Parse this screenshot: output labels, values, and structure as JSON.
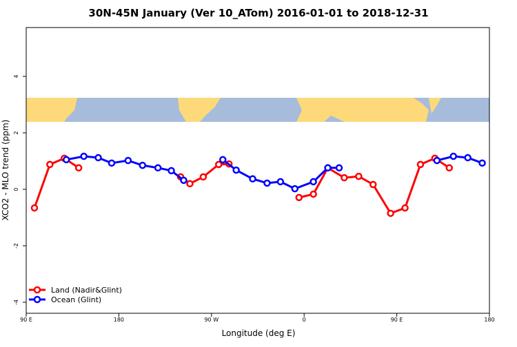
{
  "chart_data": {
    "type": "line",
    "title": "30N-45N January (Ver 10_ATom)   2016-01-01 to 2018-12-31",
    "x_label": "Longitude (deg E)",
    "y_label": "XCO2 - MLO trend (ppm)",
    "xlim": [
      90,
      540
    ],
    "xticks": [
      {
        "value": 90,
        "label": "90 E"
      },
      {
        "value": 180,
        "label": "180"
      },
      {
        "value": 270,
        "label": "90 W"
      },
      {
        "value": 360,
        "label": "0"
      },
      {
        "value": 450,
        "label": "90 E"
      },
      {
        "value": 540,
        "label": "180"
      }
    ],
    "ylim": [
      -4.39,
      5.73
    ],
    "yticks": [
      -4,
      -2,
      0,
      2,
      4
    ],
    "legend": "bottom-left",
    "series": [
      {
        "name": "Land (Nadir&Glint)",
        "color": "#ff0000",
        "x": [
          98,
          113,
          127,
          141,
          null,
          240,
          249,
          262,
          277,
          287,
          null,
          355,
          369,
          383,
          399,
          413,
          427,
          444,
          458,
          473,
          487,
          501
        ],
        "values": [
          -0.66,
          0.88,
          1.1,
          0.76,
          null,
          0.44,
          0.2,
          0.44,
          0.88,
          0.9,
          null,
          -0.29,
          -0.17,
          0.76,
          0.41,
          0.46,
          0.17,
          -0.85,
          -0.66,
          0.88,
          1.1,
          0.76
        ]
      },
      {
        "name": "Ocean (Glint)",
        "color": "#0000ff",
        "x": [
          129,
          146,
          160,
          173,
          189,
          203,
          218,
          231,
          243,
          null,
          281,
          294,
          310,
          324,
          337,
          351,
          369,
          383,
          394,
          null,
          489,
          505,
          519,
          533
        ],
        "values": [
          1.05,
          1.17,
          1.12,
          0.93,
          1.02,
          0.85,
          0.76,
          0.66,
          0.32,
          null,
          1.05,
          0.68,
          0.37,
          0.22,
          0.27,
          0.02,
          0.27,
          0.76,
          0.76,
          null,
          1.02,
          1.17,
          1.12,
          0.93
        ]
      }
    ]
  }
}
